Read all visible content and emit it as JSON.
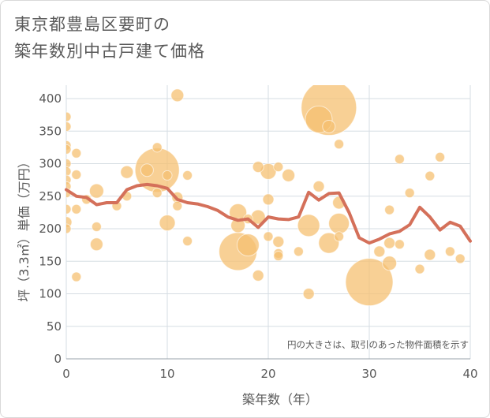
{
  "title": {
    "line1": "東京都豊島区要町の",
    "line2": "築年数別中古戸建て価格"
  },
  "chart_data": {
    "type": "scatter",
    "title": "東京都豊島区要町の築年数別中古戸建て価格",
    "xlabel": "築年数（年）",
    "ylabel": "坪（3.3㎡）単価（万円）",
    "xlim": [
      0,
      40
    ],
    "ylim": [
      0,
      400
    ],
    "xticks": [
      "0",
      "10",
      "20",
      "30",
      "40"
    ],
    "yticks": [
      "0",
      "50",
      "100",
      "150",
      "200",
      "250",
      "300",
      "350",
      "400"
    ],
    "grid": true,
    "note": "円の大きさは、取引のあった物件面積を示す",
    "bubble_color": "#f5c071",
    "line_color": "#d4705a",
    "bubbles": [
      {
        "x": 0,
        "y": 372,
        "r": 6
      },
      {
        "x": 0,
        "y": 357,
        "r": 6
      },
      {
        "x": 0,
        "y": 328,
        "r": 6
      },
      {
        "x": 0,
        "y": 322,
        "r": 6
      },
      {
        "x": 0,
        "y": 300,
        "r": 6
      },
      {
        "x": 0,
        "y": 288,
        "r": 6
      },
      {
        "x": 0,
        "y": 275,
        "r": 6
      },
      {
        "x": 0,
        "y": 265,
        "r": 6
      },
      {
        "x": 0,
        "y": 255,
        "r": 6
      },
      {
        "x": 0,
        "y": 230,
        "r": 6
      },
      {
        "x": 0,
        "y": 210,
        "r": 7
      },
      {
        "x": 0,
        "y": 200,
        "r": 6
      },
      {
        "x": 1,
        "y": 316,
        "r": 6
      },
      {
        "x": 1,
        "y": 283,
        "r": 6
      },
      {
        "x": 1,
        "y": 230,
        "r": 6
      },
      {
        "x": 1,
        "y": 126,
        "r": 6
      },
      {
        "x": 2,
        "y": 245,
        "r": 6
      },
      {
        "x": 3,
        "y": 258,
        "r": 9
      },
      {
        "x": 3,
        "y": 203,
        "r": 6
      },
      {
        "x": 3,
        "y": 176,
        "r": 8
      },
      {
        "x": 5,
        "y": 235,
        "r": 6
      },
      {
        "x": 6,
        "y": 287,
        "r": 8
      },
      {
        "x": 6,
        "y": 250,
        "r": 6
      },
      {
        "x": 8,
        "y": 290,
        "r": 8
      },
      {
        "x": 9,
        "y": 325,
        "r": 6
      },
      {
        "x": 9,
        "y": 290,
        "r": 28
      },
      {
        "x": 9,
        "y": 255,
        "r": 6
      },
      {
        "x": 10,
        "y": 282,
        "r": 6
      },
      {
        "x": 10,
        "y": 209,
        "r": 10
      },
      {
        "x": 11,
        "y": 405,
        "r": 8
      },
      {
        "x": 11,
        "y": 248,
        "r": 7
      },
      {
        "x": 11,
        "y": 235,
        "r": 6
      },
      {
        "x": 12,
        "y": 282,
        "r": 6
      },
      {
        "x": 12,
        "y": 181,
        "r": 6
      },
      {
        "x": 17,
        "y": 225,
        "r": 11
      },
      {
        "x": 17,
        "y": 205,
        "r": 9
      },
      {
        "x": 17,
        "y": 165,
        "r": 24
      },
      {
        "x": 18,
        "y": 175,
        "r": 14
      },
      {
        "x": 18,
        "y": 215,
        "r": 6
      },
      {
        "x": 19,
        "y": 295,
        "r": 7
      },
      {
        "x": 19,
        "y": 218,
        "r": 9
      },
      {
        "x": 19,
        "y": 128,
        "r": 7
      },
      {
        "x": 20,
        "y": 288,
        "r": 10
      },
      {
        "x": 20,
        "y": 245,
        "r": 7
      },
      {
        "x": 20,
        "y": 188,
        "r": 6
      },
      {
        "x": 21,
        "y": 295,
        "r": 6
      },
      {
        "x": 21,
        "y": 180,
        "r": 7
      },
      {
        "x": 21,
        "y": 162,
        "r": 6
      },
      {
        "x": 21,
        "y": 158,
        "r": 6
      },
      {
        "x": 22,
        "y": 282,
        "r": 8
      },
      {
        "x": 23,
        "y": 165,
        "r": 6
      },
      {
        "x": 24,
        "y": 205,
        "r": 14
      },
      {
        "x": 24,
        "y": 100,
        "r": 7
      },
      {
        "x": 25,
        "y": 265,
        "r": 7
      },
      {
        "x": 25,
        "y": 368,
        "r": 17
      },
      {
        "x": 26,
        "y": 386,
        "r": 35
      },
      {
        "x": 26,
        "y": 357,
        "r": 8
      },
      {
        "x": 26,
        "y": 178,
        "r": 13
      },
      {
        "x": 27,
        "y": 330,
        "r": 6
      },
      {
        "x": 27,
        "y": 240,
        "r": 8
      },
      {
        "x": 27,
        "y": 208,
        "r": 13
      },
      {
        "x": 27,
        "y": 188,
        "r": 6
      },
      {
        "x": 30,
        "y": 118,
        "r": 30
      },
      {
        "x": 31,
        "y": 165,
        "r": 7
      },
      {
        "x": 32,
        "y": 229,
        "r": 6
      },
      {
        "x": 32,
        "y": 178,
        "r": 7
      },
      {
        "x": 32,
        "y": 147,
        "r": 9
      },
      {
        "x": 33,
        "y": 307,
        "r": 6
      },
      {
        "x": 33,
        "y": 176,
        "r": 6
      },
      {
        "x": 34,
        "y": 255,
        "r": 6
      },
      {
        "x": 35,
        "y": 138,
        "r": 6
      },
      {
        "x": 36,
        "y": 281,
        "r": 6
      },
      {
        "x": 36,
        "y": 160,
        "r": 7
      },
      {
        "x": 37,
        "y": 310,
        "r": 6
      },
      {
        "x": 38,
        "y": 165,
        "r": 6
      },
      {
        "x": 39,
        "y": 154,
        "r": 6
      }
    ],
    "trend": [
      {
        "x": 0,
        "y": 260
      },
      {
        "x": 1,
        "y": 250
      },
      {
        "x": 2,
        "y": 248
      },
      {
        "x": 3,
        "y": 237
      },
      {
        "x": 4,
        "y": 240
      },
      {
        "x": 5,
        "y": 240
      },
      {
        "x": 6,
        "y": 260
      },
      {
        "x": 7,
        "y": 266
      },
      {
        "x": 8,
        "y": 268
      },
      {
        "x": 9,
        "y": 266
      },
      {
        "x": 10,
        "y": 262
      },
      {
        "x": 11,
        "y": 245
      },
      {
        "x": 12,
        "y": 240
      },
      {
        "x": 13,
        "y": 238
      },
      {
        "x": 14,
        "y": 234
      },
      {
        "x": 15,
        "y": 228
      },
      {
        "x": 16,
        "y": 218
      },
      {
        "x": 17,
        "y": 213
      },
      {
        "x": 18,
        "y": 215
      },
      {
        "x": 19,
        "y": 202
      },
      {
        "x": 20,
        "y": 218
      },
      {
        "x": 21,
        "y": 215
      },
      {
        "x": 22,
        "y": 214
      },
      {
        "x": 23,
        "y": 218
      },
      {
        "x": 24,
        "y": 256
      },
      {
        "x": 25,
        "y": 244
      },
      {
        "x": 26,
        "y": 254
      },
      {
        "x": 27,
        "y": 255
      },
      {
        "x": 28,
        "y": 225
      },
      {
        "x": 29,
        "y": 186
      },
      {
        "x": 30,
        "y": 178
      },
      {
        "x": 31,
        "y": 184
      },
      {
        "x": 32,
        "y": 192
      },
      {
        "x": 33,
        "y": 196
      },
      {
        "x": 34,
        "y": 206
      },
      {
        "x": 35,
        "y": 233
      },
      {
        "x": 36,
        "y": 218
      },
      {
        "x": 37,
        "y": 198
      },
      {
        "x": 38,
        "y": 210
      },
      {
        "x": 39,
        "y": 204
      },
      {
        "x": 40,
        "y": 181
      }
    ]
  }
}
